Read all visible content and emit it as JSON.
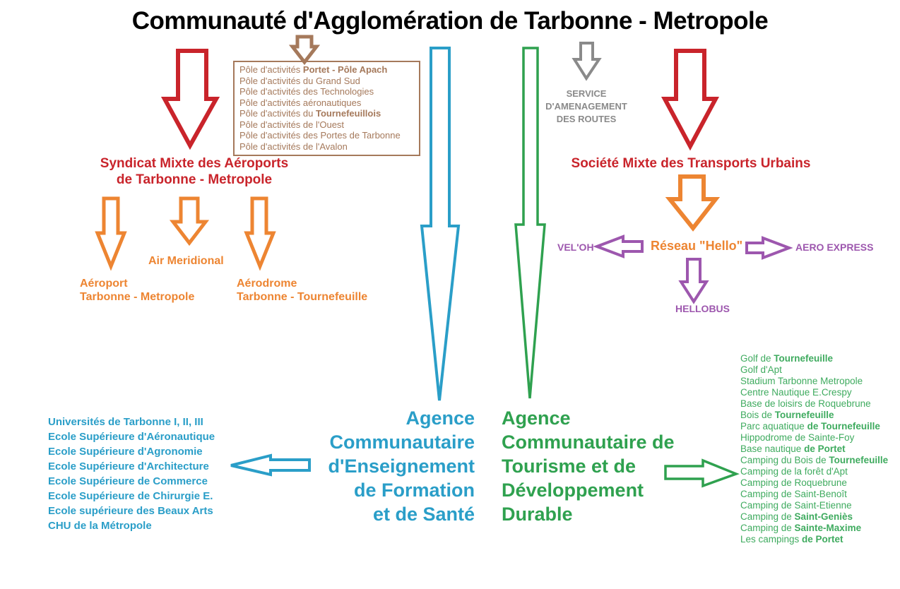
{
  "title": "Communauté d'Agglomération de Tarbonne - Metropole",
  "colors": {
    "red": "#c9242b",
    "brown": "#a5795b",
    "orange": "#ed8532",
    "blue": "#2a9ec8",
    "green": "#2fa14f",
    "green_light": "#3fab5f",
    "purple": "#9d57ae",
    "gray": "#8a8a8a",
    "title": "#000000"
  },
  "icons": [
    {
      "name": "pole-box-down-arrow-icon",
      "shape": "down-arrow",
      "color": "brown"
    },
    {
      "name": "syndicat-down-arrow-icon",
      "shape": "down-arrow",
      "color": "red"
    },
    {
      "name": "transports-down-arrow-icon",
      "shape": "down-arrow",
      "color": "red"
    },
    {
      "name": "aeroport-down-arrow-icon",
      "shape": "down-arrow",
      "color": "orange"
    },
    {
      "name": "air-meridional-down-arrow-icon",
      "shape": "down-arrow",
      "color": "orange"
    },
    {
      "name": "aerodrome-down-arrow-icon",
      "shape": "down-arrow",
      "color": "orange"
    },
    {
      "name": "reseau-down-arrow-icon",
      "shape": "down-arrow",
      "color": "orange"
    },
    {
      "name": "routes-down-arrow-icon",
      "shape": "down-arrow",
      "color": "gray"
    },
    {
      "name": "education-long-down-arrow-icon",
      "shape": "long-down-arrow",
      "color": "blue"
    },
    {
      "name": "tourism-long-down-arrow-icon",
      "shape": "long-down-arrow",
      "color": "green"
    },
    {
      "name": "veloh-left-arrow-icon",
      "shape": "left-arrow",
      "color": "purple"
    },
    {
      "name": "aero-express-right-arrow-icon",
      "shape": "right-arrow",
      "color": "purple"
    },
    {
      "name": "hellobus-down-arrow-icon",
      "shape": "down-arrow",
      "color": "purple"
    },
    {
      "name": "institutions-left-arrow-icon",
      "shape": "left-arrow",
      "color": "blue"
    },
    {
      "name": "facilities-right-arrow-icon",
      "shape": "right-arrow",
      "color": "green"
    }
  ],
  "pole_box": {
    "items": [
      {
        "pre": "Pôle d'activités ",
        "bold": "Portet - Pôle Apach"
      },
      "Pôle d'activités du Grand Sud",
      "Pôle d'activités des Technologies",
      "Pôle d'activités aéronautiques",
      {
        "pre": "Pôle d'activités du ",
        "bold": "Tournefeuillois"
      },
      "Pôle d'activités de l'Ouest",
      "Pôle d'activités des Portes de Tarbonne",
      "Pôle d'activités de l'Avalon"
    ]
  },
  "airports": {
    "heading_line1": "Syndicat Mixte des Aéroports",
    "heading_line2": "de Tarbonne - Metropole",
    "air_meridional": "Air Meridional",
    "aeroport_line1": "Aéroport",
    "aeroport_line2": "Tarbonne - Metropole",
    "aerodrome_line1": "Aérodrome",
    "aerodrome_line2_pre": "Tarbonne - ",
    "aerodrome_line2_bold": "Tournefeuille"
  },
  "roads": {
    "line1": "SERVICE",
    "line2": "D'AMENAGEMENT",
    "line3": "DES ROUTES"
  },
  "transport": {
    "heading": "Société Mixte des Transports Urbains",
    "network": "Réseau \"Hello\"",
    "veloh": "VEL'OH",
    "aero_express": "AERO EXPRESS",
    "hellobus": "HELLOBUS"
  },
  "education": {
    "heading_lines": [
      "Agence",
      "Communautaire",
      "d'Enseignement",
      "de Formation",
      "et de Santé"
    ],
    "institutions": [
      "Universités de Tarbonne I, II, III",
      "Ecole Supérieure d'Aéronautique",
      "Ecole Supérieure d'Agronomie",
      "Ecole Supérieure d'Architecture",
      "Ecole Supérieure de Commerce",
      "Ecole Supérieure de Chirurgie E.",
      "Ecole supérieure des Beaux Arts",
      "CHU de la Métropole"
    ]
  },
  "tourism": {
    "heading_lines": [
      "Agence",
      "Communautaire de",
      "Tourisme et de",
      "Développement",
      "Durable"
    ],
    "facilities": [
      {
        "pre": "Golf de  ",
        "bold": "Tournefeuille"
      },
      "Golf d'Apt",
      "Stadium Tarbonne Metropole",
      "Centre Nautique E.Crespy",
      "Base de loisirs de Roquebrune",
      {
        "pre": "Bois de  ",
        "bold": "Tournefeuille"
      },
      {
        "pre": "Parc aquatique ",
        "bold": "de Tournefeuille"
      },
      "Hippodrome de Sainte-Foy",
      {
        "pre": "Base nautique ",
        "bold": "de Portet"
      },
      {
        "pre": "Camping du Bois de ",
        "bold": "Tournefeuille"
      },
      "Camping de la forêt d'Apt",
      "Camping de Roquebrune",
      "Camping de Saint-Benoît",
      "Camping de Saint-Etienne",
      {
        "pre": "Camping de ",
        "bold": "Saint-Geniès"
      },
      {
        "pre": "Camping de  ",
        "bold": "Sainte-Maxime"
      },
      {
        "pre": "Les campings ",
        "bold": "de Portet"
      }
    ]
  }
}
